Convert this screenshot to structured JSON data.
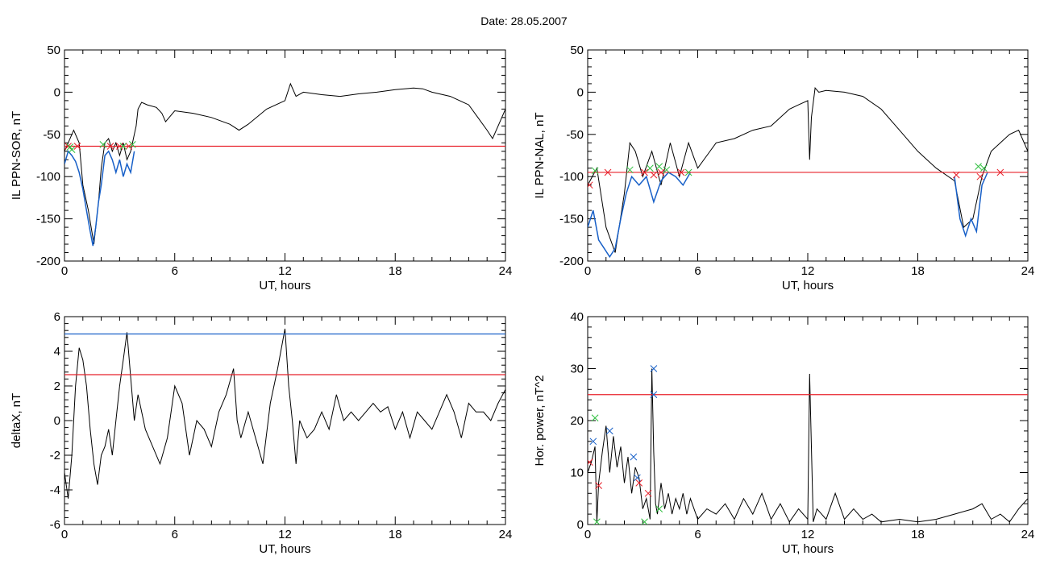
{
  "title": "Date:  28.05.2007",
  "chart_data": [
    {
      "id": "p1",
      "type": "line",
      "xlabel": "UT, hours",
      "ylabel": "IL PPN-SOR, nT",
      "xlim": [
        0,
        24
      ],
      "ylim": [
        -200,
        50
      ],
      "xticks": [
        0,
        6,
        12,
        18,
        24
      ],
      "yticks": [
        -200,
        -150,
        -100,
        -50,
        0,
        50
      ],
      "hlines": [
        {
          "y": -64,
          "color": "#e8202a"
        }
      ],
      "series": [
        {
          "color": "#000000",
          "x": [
            0,
            0.2,
            0.5,
            0.8,
            1.0,
            1.3,
            1.6,
            1.85,
            2.0,
            2.2,
            2.4,
            2.6,
            2.8,
            3.0,
            3.2,
            3.4,
            3.6,
            3.8,
            3.9,
            4.0,
            4.2,
            4.5,
            5.0,
            5.3,
            5.5,
            6.0,
            7.0,
            8.0,
            9.0,
            9.5,
            10.0,
            11.0,
            12.0,
            12.3,
            12.6,
            13.0,
            14.0,
            15.0,
            16.0,
            17.0,
            18.0,
            19.0,
            19.5,
            20.0,
            21.0,
            22.0,
            22.5,
            23.0,
            23.3,
            23.6,
            24.0
          ],
          "y": [
            -70,
            -60,
            -45,
            -60,
            -110,
            -140,
            -180,
            -130,
            -90,
            -60,
            -55,
            -70,
            -60,
            -75,
            -60,
            -80,
            -70,
            -50,
            -40,
            -20,
            -12,
            -15,
            -18,
            -25,
            -35,
            -22,
            -25,
            -30,
            -38,
            -45,
            -38,
            -20,
            -10,
            10,
            -5,
            0,
            -3,
            -5,
            -2,
            0,
            3,
            5,
            4,
            0,
            -5,
            -15,
            -30,
            -45,
            -55,
            -40,
            -20
          ]
        },
        {
          "color": "#1860c8",
          "x": [
            0,
            0.2,
            0.4,
            0.6,
            0.8,
            1.0,
            1.2,
            1.4,
            1.55,
            1.7,
            1.85,
            2.0,
            2.2,
            2.4,
            2.6,
            2.8,
            3.0,
            3.2,
            3.4,
            3.6,
            3.8
          ],
          "y": [
            -85,
            -70,
            -75,
            -82,
            -95,
            -115,
            -140,
            -165,
            -182,
            -160,
            -130,
            -110,
            -75,
            -70,
            -80,
            -95,
            -80,
            -100,
            -85,
            -95,
            -70
          ]
        }
      ],
      "markers": [
        {
          "symbol": "x",
          "color": "#e8202a",
          "points": [
            [
              0.2,
              -64
            ],
            [
              0.7,
              -64
            ],
            [
              2.5,
              -64
            ],
            [
              3.0,
              -64
            ],
            [
              3.5,
              -64
            ]
          ]
        },
        {
          "symbol": "x",
          "color": "#30c040",
          "points": [
            [
              0.3,
              -65
            ],
            [
              0.4,
              -68
            ],
            [
              2.1,
              -62
            ],
            [
              3.2,
              -64
            ],
            [
              3.7,
              -62
            ]
          ]
        }
      ]
    },
    {
      "id": "p2",
      "type": "line",
      "xlabel": "UT, hours",
      "ylabel": "IL PPN-NAL, nT",
      "xlim": [
        0,
        24
      ],
      "ylim": [
        -200,
        50
      ],
      "xticks": [
        0,
        6,
        12,
        18,
        24
      ],
      "yticks": [
        -200,
        -150,
        -100,
        -50,
        0,
        50
      ],
      "hlines": [
        {
          "y": -95,
          "color": "#e8202a"
        }
      ],
      "series": [
        {
          "color": "#000000",
          "x": [
            0,
            0.5,
            1.0,
            1.5,
            2.0,
            2.3,
            2.6,
            3.0,
            3.5,
            4.0,
            4.5,
            5.0,
            5.5,
            6.0,
            6.5,
            7.0,
            8.0,
            9.0,
            10.0,
            11.0,
            11.5,
            12.0,
            12.1,
            12.2,
            12.4,
            12.6,
            13.0,
            14.0,
            15.0,
            16.0,
            17.0,
            18.0,
            19.0,
            20.0,
            20.5,
            21.0,
            21.5,
            22.0,
            22.5,
            23.0,
            23.5,
            24.0
          ],
          "y": [
            -110,
            -90,
            -160,
            -190,
            -120,
            -60,
            -70,
            -100,
            -70,
            -110,
            -60,
            -100,
            -60,
            -90,
            -75,
            -60,
            -55,
            -45,
            -40,
            -20,
            -15,
            -10,
            -80,
            -30,
            5,
            0,
            2,
            0,
            -5,
            -20,
            -45,
            -70,
            -90,
            -105,
            -160,
            -150,
            -100,
            -70,
            -60,
            -50,
            -45,
            -70
          ]
        },
        {
          "color": "#1860c8",
          "x": [
            0,
            0.3,
            0.6,
            0.9,
            1.2,
            1.5,
            1.8,
            2.1,
            2.4,
            2.8,
            3.2,
            3.6,
            4.0,
            4.4,
            4.8,
            5.2,
            5.6
          ],
          "y": [
            -160,
            -140,
            -175,
            -185,
            -195,
            -185,
            -150,
            -120,
            -100,
            -110,
            -100,
            -130,
            -105,
            -95,
            -100,
            -110,
            -95
          ]
        },
        {
          "color": "#1860c8",
          "x": [
            20.0,
            20.3,
            20.6,
            20.9,
            21.2,
            21.5,
            21.8
          ],
          "y": [
            -100,
            -150,
            -170,
            -150,
            -165,
            -110,
            -95
          ]
        }
      ],
      "markers": [
        {
          "symbol": "x",
          "color": "#e8202a",
          "points": [
            [
              0.1,
              -110
            ],
            [
              1.1,
              -95
            ],
            [
              3.1,
              -95
            ],
            [
              3.6,
              -98
            ],
            [
              4.0,
              -95
            ],
            [
              5.1,
              -95
            ],
            [
              20.1,
              -98
            ],
            [
              21.4,
              -100
            ],
            [
              22.5,
              -95
            ]
          ]
        },
        {
          "symbol": "x",
          "color": "#30c040",
          "points": [
            [
              0.4,
              -93
            ],
            [
              2.3,
              -92
            ],
            [
              3.4,
              -90
            ],
            [
              3.9,
              -88
            ],
            [
              4.3,
              -92
            ],
            [
              5.5,
              -95
            ],
            [
              21.3,
              -88
            ],
            [
              21.6,
              -90
            ]
          ]
        }
      ]
    },
    {
      "id": "p3",
      "type": "line",
      "xlabel": "UT, hours",
      "ylabel": "deltaX, nT",
      "xlim": [
        0,
        24
      ],
      "ylim": [
        -6,
        6
      ],
      "xticks": [
        0,
        6,
        12,
        18,
        24
      ],
      "yticks": [
        -6,
        -4,
        -2,
        0,
        2,
        4,
        6
      ],
      "hlines": [
        {
          "y": 5.0,
          "color": "#1860c8"
        },
        {
          "y": 2.65,
          "color": "#e8202a"
        }
      ],
      "series": [
        {
          "color": "#000000",
          "x": [
            0,
            0.2,
            0.4,
            0.6,
            0.8,
            1.0,
            1.2,
            1.4,
            1.6,
            1.8,
            2.0,
            2.2,
            2.4,
            2.6,
            2.8,
            3.0,
            3.2,
            3.4,
            3.6,
            3.8,
            4.0,
            4.4,
            4.8,
            5.2,
            5.6,
            6.0,
            6.4,
            6.8,
            7.2,
            7.6,
            8.0,
            8.4,
            8.8,
            9.2,
            9.4,
            9.6,
            10.0,
            10.4,
            10.8,
            11.2,
            11.6,
            12.0,
            12.2,
            12.4,
            12.6,
            12.8,
            13.2,
            13.6,
            14.0,
            14.4,
            14.8,
            15.2,
            15.6,
            16.0,
            16.4,
            16.8,
            17.2,
            17.6,
            18.0,
            18.4,
            18.8,
            19.2,
            19.6,
            20.0,
            20.4,
            20.8,
            21.2,
            21.6,
            22.0,
            22.4,
            22.8,
            23.2,
            23.6,
            24.0
          ],
          "y": [
            -3,
            -4.5,
            -2,
            2,
            4.2,
            3.5,
            2,
            -0.5,
            -2.5,
            -3.7,
            -2,
            -1.5,
            -0.5,
            -2,
            0,
            2,
            3.5,
            5.1,
            2.5,
            0,
            1.5,
            -0.5,
            -1.5,
            -2.5,
            -1,
            2,
            1,
            -2,
            0,
            -0.5,
            -1.5,
            0.5,
            1.5,
            3,
            0,
            -1,
            0.5,
            -1,
            -2.5,
            1,
            3,
            5.3,
            2,
            0,
            -2.5,
            0,
            -1,
            -0.5,
            0.5,
            -0.5,
            1.5,
            0,
            0.5,
            0,
            0.5,
            1,
            0.5,
            0.8,
            -0.5,
            0.5,
            -1,
            0.5,
            0,
            -0.5,
            0.5,
            1.5,
            0.5,
            -1,
            1,
            0.5,
            0.5,
            0,
            1,
            1.8
          ]
        }
      ],
      "markers": []
    },
    {
      "id": "p4",
      "type": "line",
      "xlabel": "UT, hours",
      "ylabel": "Hor. power, nT^2",
      "xlim": [
        0,
        24
      ],
      "ylim": [
        0,
        40
      ],
      "xticks": [
        0,
        6,
        12,
        18,
        24
      ],
      "yticks": [
        0,
        10,
        20,
        30,
        40
      ],
      "hlines": [
        {
          "y": 25,
          "color": "#e8202a"
        }
      ],
      "series": [
        {
          "color": "#000000",
          "x": [
            0,
            0.2,
            0.4,
            0.5,
            0.6,
            0.8,
            1.0,
            1.2,
            1.4,
            1.6,
            1.8,
            2.0,
            2.2,
            2.4,
            2.6,
            2.8,
            3.0,
            3.2,
            3.4,
            3.5,
            3.6,
            3.7,
            3.8,
            4.0,
            4.2,
            4.4,
            4.6,
            4.8,
            5.0,
            5.2,
            5.4,
            5.6,
            6.0,
            6.5,
            7.0,
            7.5,
            8.0,
            8.5,
            9.0,
            9.5,
            10.0,
            10.5,
            11.0,
            11.5,
            12.0,
            12.1,
            12.2,
            12.3,
            12.5,
            13.0,
            13.5,
            14.0,
            14.5,
            15.0,
            15.5,
            16.0,
            17.0,
            18.0,
            19.0,
            20.0,
            21.0,
            21.5,
            22.0,
            22.5,
            23.0,
            23.5,
            24.0
          ],
          "y": [
            10,
            12,
            15,
            0.5,
            8,
            14,
            19,
            10,
            17,
            11,
            15,
            8,
            13,
            6,
            11,
            9,
            3,
            5,
            1,
            30,
            14,
            4,
            2,
            8,
            3,
            6,
            2,
            5,
            3,
            6,
            2,
            5,
            1,
            3,
            2,
            4,
            1,
            5,
            2,
            6,
            1,
            4,
            0.5,
            3,
            1,
            29,
            15,
            0.5,
            3,
            1,
            6,
            1,
            3,
            1,
            2,
            0.5,
            1,
            0.5,
            1,
            2,
            3,
            4,
            1,
            2,
            0.5,
            3,
            5
          ]
        }
      ],
      "markers": [
        {
          "symbol": "x",
          "color": "#e8202a",
          "points": [
            [
              0.1,
              12
            ],
            [
              0.6,
              7.5
            ],
            [
              2.8,
              8
            ],
            [
              3.3,
              6
            ]
          ]
        },
        {
          "symbol": "x",
          "color": "#30c040",
          "points": [
            [
              0.4,
              20.5
            ],
            [
              0.5,
              0.5
            ],
            [
              3.1,
              0.5
            ],
            [
              3.9,
              3
            ]
          ]
        },
        {
          "symbol": "x",
          "color": "#1860c8",
          "points": [
            [
              0.3,
              16
            ],
            [
              1.2,
              18
            ],
            [
              2.5,
              13
            ],
            [
              2.7,
              9
            ],
            [
              3.6,
              30
            ],
            [
              3.6,
              25
            ]
          ]
        }
      ]
    }
  ]
}
